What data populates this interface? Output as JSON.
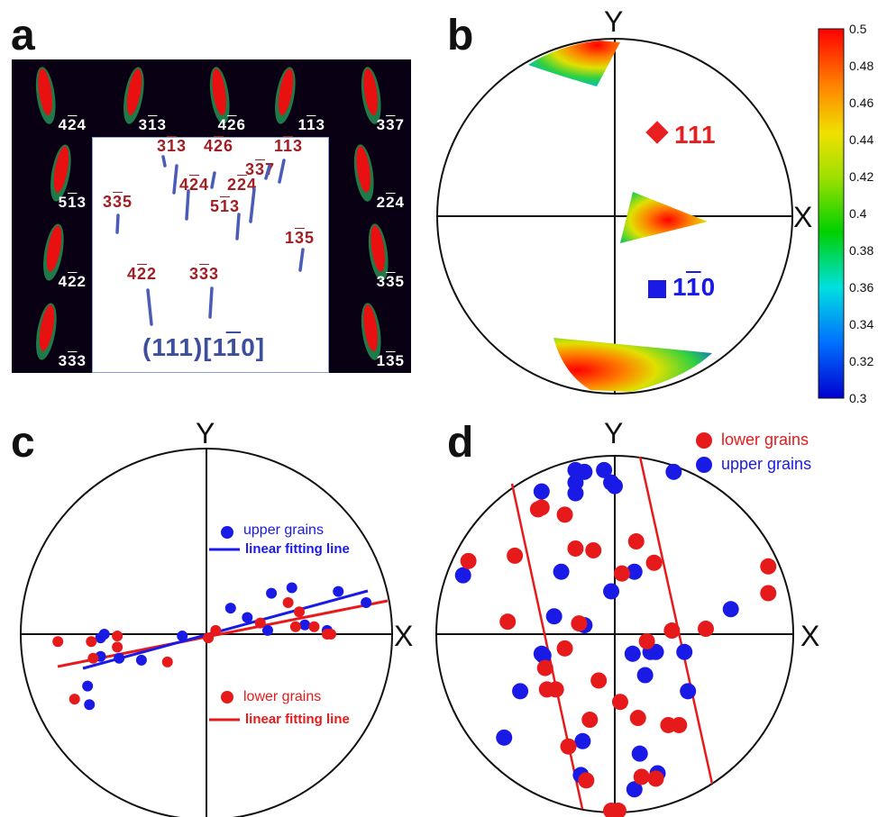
{
  "panels": {
    "a": {
      "letter": "a"
    },
    "b": {
      "letter": "b"
    },
    "c": {
      "letter": "c"
    },
    "d": {
      "letter": "d"
    }
  },
  "panel_a": {
    "tiles": [
      {
        "pre": "4",
        "bar": "2",
        "post": "4"
      },
      {
        "pre": "3",
        "bar": "1",
        "post": "3"
      },
      {
        "pre": "4",
        "bar": "2",
        "post": "6"
      },
      {
        "pre": "1",
        "bar": "1",
        "post": "3"
      },
      {
        "pre": "3",
        "bar": "3",
        "post": "7"
      },
      {
        "pre": "5",
        "bar": "1",
        "post": "3"
      },
      {
        "pre": "2",
        "bar": "2",
        "post": "4"
      },
      {
        "pre": "4",
        "bar": "2",
        "post": "2"
      },
      {
        "pre": "3",
        "bar": "3",
        "post": "5"
      },
      {
        "pre": "3",
        "bar": "3",
        "post": "3"
      },
      {
        "pre": "1",
        "bar": "3",
        "post": "5"
      }
    ],
    "center_labels": [
      {
        "pre": "3",
        "bar": "1",
        "post": "3"
      },
      {
        "pre": "4",
        "bar": "2",
        "post": "6"
      },
      {
        "pre": "1",
        "bar": "1",
        "post": "3"
      },
      {
        "pre": "3",
        "bar": "3",
        "post": "7"
      },
      {
        "pre": "4",
        "bar": "2",
        "post": "4"
      },
      {
        "pre": "2",
        "bar": "2",
        "post": "4"
      },
      {
        "pre": "5",
        "bar": "1",
        "post": "3"
      },
      {
        "pre": "3",
        "bar": "3",
        "post": "5"
      },
      {
        "pre": "1",
        "bar": "3",
        "post": "5"
      },
      {
        "pre": "4",
        "bar": "2",
        "post": "2"
      },
      {
        "pre": "3",
        "bar": "3",
        "post": "3"
      }
    ],
    "orientation": {
      "plane": "(111)",
      "dir_pre": "[1",
      "dir_bar": "1",
      "dir_post": "0]"
    }
  },
  "panel_b": {
    "axis_x": "X",
    "axis_y": "Y",
    "label_111": "111",
    "label_110": {
      "pre": "1",
      "bar": "1",
      "post": "0"
    },
    "colorbar_ticks": [
      "0.5",
      "0.48",
      "0.46",
      "0.44",
      "0.42",
      "0.4",
      "0.38",
      "0.36",
      "0.34",
      "0.32",
      "0.3"
    ]
  },
  "panel_c": {
    "axis_x": "X",
    "axis_y": "Y",
    "legend": {
      "upper": "upper grains",
      "upper_fit": "linear fitting line",
      "lower": "lower grains",
      "lower_fit": "linear fitting line"
    },
    "colors": {
      "upper": "#1a1ae6",
      "lower": "#e61a1a"
    }
  },
  "panel_d": {
    "axis_x": "X",
    "axis_y": "Y",
    "legend": {
      "lower": "lower grains",
      "upper": "upper grains"
    },
    "colors": {
      "upper": "#1a1ae6",
      "lower": "#e61a1a"
    }
  },
  "chart_data": [
    {
      "type": "scatter",
      "panel": "c",
      "xlim": [
        -1,
        1
      ],
      "ylim": [
        -1,
        1
      ],
      "series": [
        {
          "name": "upper grains",
          "points": [
            [
              -0.57,
              -0.12
            ],
            [
              -0.67,
              -0.3
            ],
            [
              -0.64,
              -0.38
            ],
            [
              -0.58,
              -0.02
            ],
            [
              -0.55,
              0.0
            ],
            [
              -0.46,
              -0.12
            ],
            [
              -0.34,
              -0.13
            ],
            [
              -0.13,
              -0.01
            ],
            [
              -0.04,
              0.0
            ],
            [
              0.13,
              0.14
            ],
            [
              0.21,
              0.08
            ],
            [
              0.35,
              0.02
            ],
            [
              0.32,
              0.21
            ],
            [
              0.47,
              0.06
            ],
            [
              0.35,
              0.2
            ],
            [
              0.35,
              0.2
            ],
            [
              0.35,
              0.2
            ]
          ]
        },
        {
          "name": "upper grains",
          "points": [
            [
              0.14,
              0.15
            ],
            [
              0.21,
              0.09
            ],
            [
              0.28,
              0.02
            ],
            [
              0.35,
              0.22
            ],
            [
              0.47,
              0.25
            ],
            [
              0.72,
              0.23
            ],
            [
              0.88,
              0.16
            ],
            [
              0.65,
              0.02
            ],
            [
              0.53,
              0.05
            ],
            [
              0.35,
              0.02
            ]
          ]
        },
        {
          "name": "lower grains",
          "points": [
            [
              -0.8,
              -0.04
            ],
            [
              -0.62,
              -0.04
            ],
            [
              -0.6,
              -0.13
            ],
            [
              -0.48,
              -0.01
            ],
            [
              -0.48,
              -0.07
            ],
            [
              -0.21,
              -0.15
            ],
            [
              -0.71,
              -0.34
            ],
            [
              0.0,
              -0.02
            ],
            [
              0.05,
              0.02
            ],
            [
              0.3,
              0.06
            ],
            [
              0.48,
              0.04
            ],
            [
              0.49,
              0.05
            ],
            [
              0.63,
              0.0
            ],
            [
              0.67,
              0.0
            ],
            [
              0.5,
              0.12
            ],
            [
              0.44,
              0.16
            ]
          ]
        }
      ]
    },
    {
      "type": "scatter",
      "panel": "d",
      "xlim": [
        -1,
        1
      ],
      "ylim": [
        -1,
        1
      ]
    }
  ]
}
